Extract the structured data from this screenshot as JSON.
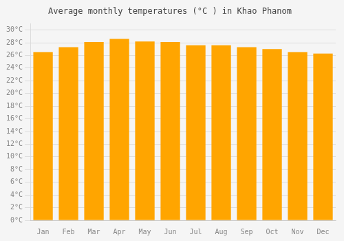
{
  "chart_data": {
    "type": "bar",
    "title": "Average monthly temperatures (°C ) in Khao Phanom",
    "categories": [
      "Jan",
      "Feb",
      "Mar",
      "Apr",
      "May",
      "Jun",
      "Jul",
      "Aug",
      "Sep",
      "Oct",
      "Nov",
      "Dec"
    ],
    "values": [
      26.5,
      27.3,
      28.1,
      28.6,
      28.2,
      28.1,
      27.6,
      27.6,
      27.3,
      27.0,
      26.5,
      26.3
    ],
    "color": "#FFA500",
    "ylim": [
      0,
      31
    ],
    "yticks": [
      {
        "value": 0,
        "label": "0°C"
      },
      {
        "value": 2,
        "label": "2°C"
      },
      {
        "value": 4,
        "label": "4°C"
      },
      {
        "value": 6,
        "label": "6°C"
      },
      {
        "value": 8,
        "label": "8°C"
      },
      {
        "value": 10,
        "label": "10°C"
      },
      {
        "value": 12,
        "label": "12°C"
      },
      {
        "value": 14,
        "label": "14°C"
      },
      {
        "value": 16,
        "label": "16°C"
      },
      {
        "value": 18,
        "label": "18°C"
      },
      {
        "value": 20,
        "label": "20°C"
      },
      {
        "value": 22,
        "label": "22°C"
      },
      {
        "value": 24,
        "label": "24°C"
      },
      {
        "value": 26,
        "label": "26°C"
      },
      {
        "value": 28,
        "label": "28°C"
      },
      {
        "value": 30,
        "label": "30°C"
      }
    ],
    "grid": true
  }
}
